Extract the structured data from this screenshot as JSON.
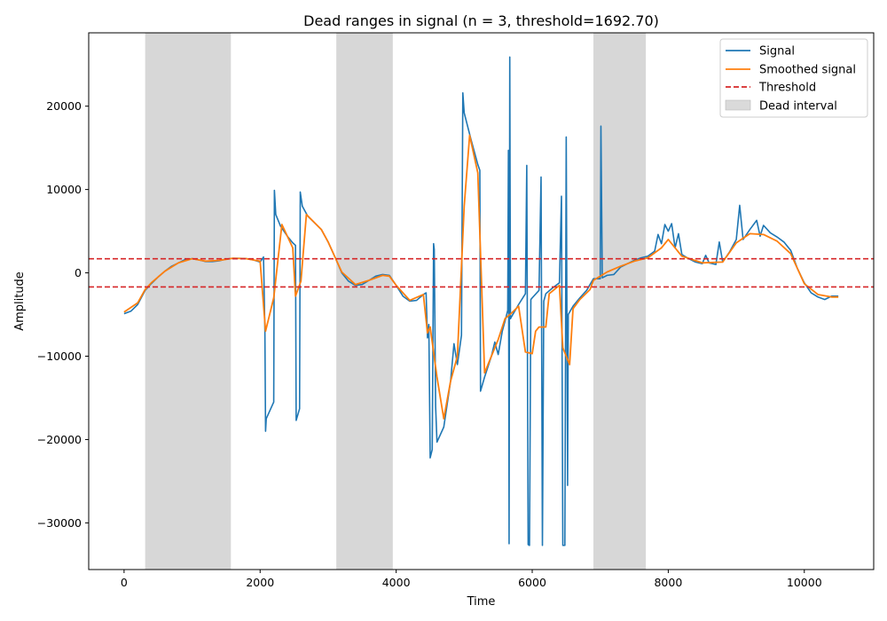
{
  "chart_data": {
    "type": "line",
    "title": "Dead ranges in signal (n = 3, threshold=1692.70)",
    "xlabel": "Time",
    "ylabel": "Amplitude",
    "xlim": [
      -520,
      11020
    ],
    "ylim": [
      -35600,
      28800
    ],
    "xticks": [
      0,
      2000,
      4000,
      6000,
      8000,
      10000
    ],
    "yticks": [
      -30000,
      -20000,
      -10000,
      0,
      10000,
      20000
    ],
    "ytick_labels": [
      "−30000",
      "−20000",
      "−10000",
      "0",
      "10000",
      "20000"
    ],
    "grid": false,
    "legend_position": "top-right",
    "legend": {
      "signal": "Signal",
      "smoothed": "Smoothed signal",
      "threshold": "Threshold",
      "dead": "Dead interval"
    },
    "threshold": 1692.7,
    "dead_intervals": [
      [
        310,
        1570
      ],
      [
        3120,
        3950
      ],
      [
        6900,
        7670
      ]
    ],
    "colors": {
      "signal": "#1f77b4",
      "smoothed": "#ff7f0e",
      "threshold": "#d62728",
      "dead": "#d3d3d3"
    },
    "series": [
      {
        "name": "Signal",
        "points": [
          [
            0,
            -4900
          ],
          [
            100,
            -4600
          ],
          [
            200,
            -3800
          ],
          [
            310,
            -2100
          ],
          [
            400,
            -1300
          ],
          [
            500,
            -500
          ],
          [
            600,
            200
          ],
          [
            700,
            800
          ],
          [
            800,
            1200
          ],
          [
            900,
            1600
          ],
          [
            1000,
            1700
          ],
          [
            1100,
            1550
          ],
          [
            1200,
            1350
          ],
          [
            1300,
            1350
          ],
          [
            1400,
            1450
          ],
          [
            1500,
            1650
          ],
          [
            1600,
            1750
          ],
          [
            1700,
            1750
          ],
          [
            1800,
            1700
          ],
          [
            1900,
            1550
          ],
          [
            2000,
            1300
          ],
          [
            2050,
            1900
          ],
          [
            2070,
            -6800
          ],
          [
            2080,
            -19000
          ],
          [
            2090,
            -17500
          ],
          [
            2200,
            -15500
          ],
          [
            2210,
            9900
          ],
          [
            2230,
            7000
          ],
          [
            2300,
            5600
          ],
          [
            2400,
            4400
          ],
          [
            2480,
            3600
          ],
          [
            2520,
            3300
          ],
          [
            2530,
            -17700
          ],
          [
            2580,
            -16300
          ],
          [
            2590,
            9700
          ],
          [
            2620,
            8000
          ],
          [
            2700,
            6800
          ],
          [
            2800,
            6000
          ],
          [
            2900,
            5200
          ],
          [
            3000,
            3700
          ],
          [
            3100,
            1900
          ],
          [
            3200,
            0
          ],
          [
            3300,
            -1000
          ],
          [
            3400,
            -1500
          ],
          [
            3500,
            -1400
          ],
          [
            3600,
            -900
          ],
          [
            3700,
            -400
          ],
          [
            3800,
            -200
          ],
          [
            3900,
            -300
          ],
          [
            4000,
            -1500
          ],
          [
            4100,
            -2800
          ],
          [
            4200,
            -3400
          ],
          [
            4300,
            -3300
          ],
          [
            4400,
            -2600
          ],
          [
            4440,
            -2400
          ],
          [
            4460,
            -7800
          ],
          [
            4480,
            -6200
          ],
          [
            4500,
            -22200
          ],
          [
            4530,
            -21200
          ],
          [
            4550,
            3500
          ],
          [
            4560,
            2800
          ],
          [
            4580,
            -16000
          ],
          [
            4600,
            -20300
          ],
          [
            4700,
            -18500
          ],
          [
            4800,
            -13000
          ],
          [
            4850,
            -8500
          ],
          [
            4900,
            -11000
          ],
          [
            4960,
            -7500
          ],
          [
            4980,
            21600
          ],
          [
            5000,
            19200
          ],
          [
            5100,
            16000
          ],
          [
            5200,
            13000
          ],
          [
            5230,
            12300
          ],
          [
            5240,
            -14200
          ],
          [
            5300,
            -12500
          ],
          [
            5400,
            -10000
          ],
          [
            5450,
            -8300
          ],
          [
            5500,
            -9800
          ],
          [
            5560,
            -7000
          ],
          [
            5600,
            -5800
          ],
          [
            5640,
            -4500
          ],
          [
            5650,
            14700
          ],
          [
            5660,
            -32500
          ],
          [
            5670,
            25900
          ],
          [
            5680,
            -5500
          ],
          [
            5700,
            -5200
          ],
          [
            5800,
            -3800
          ],
          [
            5900,
            -2500
          ],
          [
            5920,
            12900
          ],
          [
            5940,
            -32600
          ],
          [
            5960,
            -32700
          ],
          [
            5980,
            -3200
          ],
          [
            6000,
            -3000
          ],
          [
            6100,
            -2100
          ],
          [
            6130,
            11500
          ],
          [
            6150,
            -32700
          ],
          [
            6170,
            -3400
          ],
          [
            6200,
            -2500
          ],
          [
            6300,
            -1800
          ],
          [
            6400,
            -1200
          ],
          [
            6430,
            9200
          ],
          [
            6450,
            -32700
          ],
          [
            6480,
            -32700
          ],
          [
            6500,
            16300
          ],
          [
            6520,
            -25500
          ],
          [
            6530,
            -5000
          ],
          [
            6600,
            -4000
          ],
          [
            6700,
            -3000
          ],
          [
            6800,
            -2100
          ],
          [
            6900,
            -700
          ],
          [
            7000,
            -700
          ],
          [
            7010,
            17600
          ],
          [
            7030,
            -600
          ],
          [
            7100,
            -300
          ],
          [
            7200,
            -200
          ],
          [
            7300,
            700
          ],
          [
            7400,
            1100
          ],
          [
            7500,
            1500
          ],
          [
            7600,
            1800
          ],
          [
            7700,
            2000
          ],
          [
            7800,
            2600
          ],
          [
            7850,
            4600
          ],
          [
            7900,
            3500
          ],
          [
            7950,
            5800
          ],
          [
            8000,
            5000
          ],
          [
            8050,
            5900
          ],
          [
            8100,
            3000
          ],
          [
            8150,
            4700
          ],
          [
            8200,
            2200
          ],
          [
            8300,
            1700
          ],
          [
            8400,
            1300
          ],
          [
            8500,
            1100
          ],
          [
            8550,
            2100
          ],
          [
            8600,
            1200
          ],
          [
            8700,
            1000
          ],
          [
            8750,
            3700
          ],
          [
            8800,
            1300
          ],
          [
            8900,
            2500
          ],
          [
            9000,
            4000
          ],
          [
            9050,
            8100
          ],
          [
            9100,
            4000
          ],
          [
            9200,
            5200
          ],
          [
            9300,
            6300
          ],
          [
            9350,
            4400
          ],
          [
            9400,
            5700
          ],
          [
            9500,
            4800
          ],
          [
            9600,
            4300
          ],
          [
            9700,
            3700
          ],
          [
            9800,
            2700
          ],
          [
            9900,
            500
          ],
          [
            10000,
            -1200
          ],
          [
            10100,
            -2400
          ],
          [
            10200,
            -2900
          ],
          [
            10300,
            -3200
          ],
          [
            10400,
            -2800
          ],
          [
            10500,
            -2800
          ]
        ]
      },
      {
        "name": "Smoothed signal",
        "points": [
          [
            0,
            -4700
          ],
          [
            200,
            -3600
          ],
          [
            310,
            -2000
          ],
          [
            400,
            -1200
          ],
          [
            600,
            200
          ],
          [
            800,
            1200
          ],
          [
            1000,
            1700
          ],
          [
            1200,
            1400
          ],
          [
            1400,
            1500
          ],
          [
            1600,
            1750
          ],
          [
            1800,
            1700
          ],
          [
            2000,
            1400
          ],
          [
            2080,
            -7000
          ],
          [
            2200,
            -3000
          ],
          [
            2320,
            5800
          ],
          [
            2480,
            3000
          ],
          [
            2520,
            -2800
          ],
          [
            2600,
            -1000
          ],
          [
            2680,
            7000
          ],
          [
            2900,
            5200
          ],
          [
            3000,
            3700
          ],
          [
            3200,
            100
          ],
          [
            3400,
            -1400
          ],
          [
            3600,
            -900
          ],
          [
            3800,
            -300
          ],
          [
            3900,
            -400
          ],
          [
            4000,
            -1500
          ],
          [
            4200,
            -3300
          ],
          [
            4400,
            -2600
          ],
          [
            4460,
            -7200
          ],
          [
            4500,
            -6500
          ],
          [
            4600,
            -12500
          ],
          [
            4700,
            -17500
          ],
          [
            4800,
            -13000
          ],
          [
            4900,
            -10000
          ],
          [
            5000,
            8000
          ],
          [
            5080,
            16500
          ],
          [
            5200,
            12000
          ],
          [
            5300,
            -12000
          ],
          [
            5400,
            -10000
          ],
          [
            5500,
            -8000
          ],
          [
            5600,
            -5500
          ],
          [
            5700,
            -4800
          ],
          [
            5800,
            -4000
          ],
          [
            5900,
            -9500
          ],
          [
            6000,
            -9700
          ],
          [
            6050,
            -7000
          ],
          [
            6100,
            -6500
          ],
          [
            6200,
            -6500
          ],
          [
            6250,
            -2500
          ],
          [
            6400,
            -1500
          ],
          [
            6450,
            -9000
          ],
          [
            6550,
            -11000
          ],
          [
            6600,
            -4300
          ],
          [
            6700,
            -3200
          ],
          [
            6850,
            -2000
          ],
          [
            6900,
            -900
          ],
          [
            7100,
            100
          ],
          [
            7300,
            800
          ],
          [
            7500,
            1400
          ],
          [
            7700,
            1800
          ],
          [
            7900,
            3000
          ],
          [
            8000,
            4000
          ],
          [
            8200,
            2000
          ],
          [
            8500,
            1200
          ],
          [
            8800,
            1300
          ],
          [
            9000,
            3600
          ],
          [
            9200,
            4700
          ],
          [
            9400,
            4600
          ],
          [
            9600,
            3800
          ],
          [
            9800,
            2300
          ],
          [
            10000,
            -1300
          ],
          [
            10200,
            -2600
          ],
          [
            10400,
            -2900
          ],
          [
            10500,
            -2900
          ]
        ]
      }
    ]
  }
}
